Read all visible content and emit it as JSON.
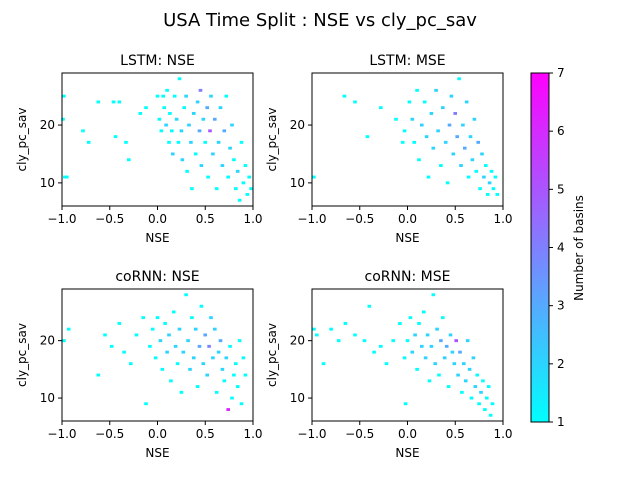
{
  "figure": {
    "suptitle": "USA Time Split : NSE vs cly_pc_sav",
    "cmap": [
      "#00ffff",
      "#ff00ff"
    ]
  },
  "chart_data": [
    {
      "type": "heatmap",
      "title": "LSTM: NSE",
      "xlabel": "NSE",
      "ylabel": "cly_pc_sav",
      "xlim": [
        -1.0,
        1.0
      ],
      "ylim": [
        6,
        29
      ],
      "xticks": [
        "−1.0",
        "−0.5",
        "0.0",
        "0.5",
        "1.0"
      ],
      "yticks": [
        "10",
        "20"
      ],
      "cells": [
        [
          -0.98,
          25,
          1
        ],
        [
          -0.99,
          21,
          1
        ],
        [
          -0.97,
          11,
          1
        ],
        [
          -0.95,
          11,
          1
        ],
        [
          -0.78,
          19,
          1
        ],
        [
          -0.72,
          17,
          1
        ],
        [
          -0.62,
          24,
          1
        ],
        [
          -0.46,
          24,
          1
        ],
        [
          -0.44,
          18,
          1
        ],
        [
          -0.4,
          24,
          1
        ],
        [
          -0.33,
          17,
          1
        ],
        [
          -0.3,
          14,
          1
        ],
        [
          -0.18,
          22,
          1
        ],
        [
          -0.12,
          23,
          1
        ],
        [
          0.0,
          25,
          1
        ],
        [
          0.02,
          21,
          1
        ],
        [
          0.04,
          19,
          1
        ],
        [
          0.06,
          25,
          1
        ],
        [
          0.07,
          23,
          1
        ],
        [
          0.09,
          20,
          2
        ],
        [
          0.1,
          26,
          1
        ],
        [
          0.12,
          17,
          1
        ],
        [
          0.13,
          22,
          1
        ],
        [
          0.15,
          19,
          1
        ],
        [
          0.16,
          15,
          2
        ],
        [
          0.18,
          25,
          1
        ],
        [
          0.2,
          21,
          2
        ],
        [
          0.22,
          17,
          1
        ],
        [
          0.23,
          28,
          1
        ],
        [
          0.25,
          19,
          2
        ],
        [
          0.26,
          14,
          2
        ],
        [
          0.28,
          23,
          1
        ],
        [
          0.3,
          25,
          2
        ],
        [
          0.31,
          12,
          1
        ],
        [
          0.33,
          20,
          2
        ],
        [
          0.35,
          17,
          2
        ],
        [
          0.36,
          9,
          1
        ],
        [
          0.38,
          22,
          2
        ],
        [
          0.4,
          15,
          1
        ],
        [
          0.42,
          24,
          2
        ],
        [
          0.44,
          19,
          3
        ],
        [
          0.45,
          26,
          4
        ],
        [
          0.46,
          13,
          2
        ],
        [
          0.48,
          21,
          2
        ],
        [
          0.5,
          17,
          1
        ],
        [
          0.52,
          23,
          3
        ],
        [
          0.53,
          11,
          1
        ],
        [
          0.55,
          19,
          5
        ],
        [
          0.56,
          25,
          2
        ],
        [
          0.58,
          15,
          2
        ],
        [
          0.6,
          21,
          3
        ],
        [
          0.62,
          9,
          1
        ],
        [
          0.64,
          17,
          2
        ],
        [
          0.66,
          23,
          2
        ],
        [
          0.68,
          13,
          2
        ],
        [
          0.7,
          19,
          3
        ],
        [
          0.72,
          25,
          1
        ],
        [
          0.74,
          11,
          1
        ],
        [
          0.76,
          16,
          2
        ],
        [
          0.78,
          20,
          2
        ],
        [
          0.8,
          14,
          1
        ],
        [
          0.82,
          9,
          1
        ],
        [
          0.84,
          12,
          2
        ],
        [
          0.86,
          7,
          1
        ],
        [
          0.88,
          17,
          1
        ],
        [
          0.9,
          10,
          1
        ],
        [
          0.92,
          13,
          1
        ],
        [
          0.94,
          8,
          1
        ],
        [
          0.96,
          11,
          1
        ],
        [
          0.98,
          9,
          1
        ]
      ]
    },
    {
      "type": "heatmap",
      "title": "LSTM: MSE",
      "xlabel": "NSE",
      "ylabel": "cly_pc_sav",
      "xlim": [
        -1.0,
        1.0
      ],
      "ylim": [
        6,
        29
      ],
      "xticks": [
        "−1.0",
        "−0.5",
        "0.0",
        "0.5",
        "1.0"
      ],
      "yticks": [
        "10",
        "20"
      ],
      "cells": [
        [
          -0.98,
          11,
          1
        ],
        [
          -0.66,
          25,
          1
        ],
        [
          -0.55,
          24,
          1
        ],
        [
          -0.42,
          18,
          1
        ],
        [
          -0.28,
          23,
          1
        ],
        [
          -0.12,
          21,
          1
        ],
        [
          -0.05,
          17,
          1
        ],
        [
          -0.03,
          19,
          1
        ],
        [
          0.02,
          24,
          1
        ],
        [
          0.05,
          21,
          2
        ],
        [
          0.07,
          17,
          1
        ],
        [
          0.1,
          26,
          1
        ],
        [
          0.12,
          14,
          1
        ],
        [
          0.15,
          20,
          2
        ],
        [
          0.18,
          24,
          1
        ],
        [
          0.2,
          18,
          2
        ],
        [
          0.22,
          11,
          1
        ],
        [
          0.25,
          22,
          2
        ],
        [
          0.27,
          16,
          2
        ],
        [
          0.3,
          26,
          2
        ],
        [
          0.32,
          19,
          2
        ],
        [
          0.35,
          13,
          1
        ],
        [
          0.37,
          23,
          2
        ],
        [
          0.4,
          17,
          2
        ],
        [
          0.42,
          10,
          1
        ],
        [
          0.44,
          20,
          3
        ],
        [
          0.46,
          25,
          2
        ],
        [
          0.48,
          15,
          2
        ],
        [
          0.5,
          22,
          4
        ],
        [
          0.52,
          18,
          3
        ],
        [
          0.54,
          28,
          1
        ],
        [
          0.56,
          13,
          2
        ],
        [
          0.58,
          20,
          2
        ],
        [
          0.6,
          16,
          3
        ],
        [
          0.62,
          24,
          2
        ],
        [
          0.64,
          11,
          1
        ],
        [
          0.66,
          18,
          2
        ],
        [
          0.68,
          14,
          2
        ],
        [
          0.7,
          21,
          2
        ],
        [
          0.72,
          12,
          1
        ],
        [
          0.74,
          17,
          3
        ],
        [
          0.76,
          9,
          1
        ],
        [
          0.78,
          15,
          2
        ],
        [
          0.8,
          11,
          2
        ],
        [
          0.82,
          13,
          1
        ],
        [
          0.84,
          8,
          1
        ],
        [
          0.86,
          10,
          2
        ],
        [
          0.88,
          12,
          1
        ],
        [
          0.9,
          9,
          1
        ],
        [
          0.92,
          11,
          1
        ],
        [
          0.94,
          8,
          1
        ]
      ]
    },
    {
      "type": "heatmap",
      "title": "coRNN: NSE",
      "xlabel": "NSE",
      "ylabel": "cly_pc_sav",
      "xlim": [
        -1.0,
        1.0
      ],
      "ylim": [
        6,
        29
      ],
      "xticks": [
        "−1.0",
        "−0.5",
        "0.0",
        "0.5",
        "1.0"
      ],
      "yticks": [
        "10",
        "20"
      ],
      "cells": [
        [
          -0.98,
          20,
          1
        ],
        [
          -0.93,
          22,
          1
        ],
        [
          -0.62,
          14,
          1
        ],
        [
          -0.55,
          21,
          1
        ],
        [
          -0.48,
          19,
          1
        ],
        [
          -0.4,
          23,
          1
        ],
        [
          -0.35,
          18,
          1
        ],
        [
          -0.28,
          16,
          1
        ],
        [
          -0.22,
          21,
          1
        ],
        [
          -0.15,
          24,
          1
        ],
        [
          -0.12,
          9,
          1
        ],
        [
          -0.08,
          19,
          1
        ],
        [
          -0.05,
          22,
          1
        ],
        [
          -0.02,
          17,
          1
        ],
        [
          0.0,
          24,
          1
        ],
        [
          0.03,
          20,
          2
        ],
        [
          0.05,
          15,
          1
        ],
        [
          0.08,
          23,
          1
        ],
        [
          0.1,
          18,
          2
        ],
        [
          0.12,
          21,
          2
        ],
        [
          0.14,
          13,
          1
        ],
        [
          0.17,
          25,
          1
        ],
        [
          0.19,
          19,
          2
        ],
        [
          0.21,
          16,
          1
        ],
        [
          0.23,
          22,
          2
        ],
        [
          0.25,
          11,
          1
        ],
        [
          0.27,
          18,
          2
        ],
        [
          0.3,
          28,
          1
        ],
        [
          0.32,
          20,
          2
        ],
        [
          0.34,
          15,
          2
        ],
        [
          0.36,
          24,
          1
        ],
        [
          0.38,
          17,
          2
        ],
        [
          0.4,
          22,
          2
        ],
        [
          0.42,
          12,
          1
        ],
        [
          0.44,
          19,
          3
        ],
        [
          0.46,
          26,
          1
        ],
        [
          0.48,
          16,
          2
        ],
        [
          0.5,
          21,
          3
        ],
        [
          0.52,
          14,
          2
        ],
        [
          0.54,
          19,
          4
        ],
        [
          0.56,
          24,
          2
        ],
        [
          0.58,
          17,
          2
        ],
        [
          0.6,
          22,
          2
        ],
        [
          0.62,
          11,
          1
        ],
        [
          0.64,
          18,
          2
        ],
        [
          0.66,
          20,
          3
        ],
        [
          0.68,
          15,
          2
        ],
        [
          0.7,
          13,
          1
        ],
        [
          0.72,
          17,
          2
        ],
        [
          0.74,
          8,
          6
        ],
        [
          0.76,
          19,
          1
        ],
        [
          0.78,
          10,
          1
        ],
        [
          0.8,
          14,
          1
        ],
        [
          0.82,
          16,
          1
        ],
        [
          0.84,
          12,
          1
        ],
        [
          0.86,
          20,
          1
        ],
        [
          0.88,
          9,
          1
        ],
        [
          0.9,
          17,
          1
        ],
        [
          0.92,
          14,
          1
        ]
      ]
    },
    {
      "type": "heatmap",
      "title": "coRNN: MSE",
      "xlabel": "NSE",
      "ylabel": "cly_pc_sav",
      "xlim": [
        -1.0,
        1.0
      ],
      "ylim": [
        6,
        29
      ],
      "xticks": [
        "−1.0",
        "−0.5",
        "0.0",
        "0.5",
        "1.0"
      ],
      "yticks": [
        "10",
        "20"
      ],
      "cells": [
        [
          -0.98,
          22,
          1
        ],
        [
          -0.95,
          21,
          1
        ],
        [
          -0.88,
          16,
          1
        ],
        [
          -0.8,
          22,
          1
        ],
        [
          -0.72,
          20,
          1
        ],
        [
          -0.65,
          23,
          1
        ],
        [
          -0.55,
          21,
          1
        ],
        [
          -0.45,
          20,
          1
        ],
        [
          -0.4,
          26,
          1
        ],
        [
          -0.35,
          18,
          1
        ],
        [
          -0.28,
          19,
          1
        ],
        [
          -0.22,
          16,
          1
        ],
        [
          -0.15,
          20,
          1
        ],
        [
          -0.08,
          23,
          1
        ],
        [
          -0.03,
          17,
          1
        ],
        [
          -0.02,
          9,
          1
        ],
        [
          0.0,
          20,
          1
        ],
        [
          0.03,
          24,
          1
        ],
        [
          0.05,
          18,
          2
        ],
        [
          0.08,
          21,
          2
        ],
        [
          0.1,
          15,
          1
        ],
        [
          0.12,
          23,
          1
        ],
        [
          0.15,
          19,
          2
        ],
        [
          0.17,
          25,
          1
        ],
        [
          0.19,
          17,
          2
        ],
        [
          0.21,
          21,
          2
        ],
        [
          0.23,
          13,
          1
        ],
        [
          0.25,
          19,
          2
        ],
        [
          0.27,
          28,
          1
        ],
        [
          0.29,
          16,
          2
        ],
        [
          0.31,
          22,
          2
        ],
        [
          0.33,
          14,
          1
        ],
        [
          0.35,
          20,
          3
        ],
        [
          0.37,
          24,
          1
        ],
        [
          0.39,
          17,
          2
        ],
        [
          0.41,
          19,
          3
        ],
        [
          0.43,
          12,
          1
        ],
        [
          0.45,
          21,
          2
        ],
        [
          0.47,
          18,
          2
        ],
        [
          0.49,
          16,
          2
        ],
        [
          0.51,
          20,
          5
        ],
        [
          0.53,
          14,
          2
        ],
        [
          0.55,
          18,
          3
        ],
        [
          0.57,
          11,
          1
        ],
        [
          0.59,
          16,
          2
        ],
        [
          0.61,
          13,
          2
        ],
        [
          0.63,
          20,
          2
        ],
        [
          0.65,
          15,
          2
        ],
        [
          0.67,
          10,
          1
        ],
        [
          0.69,
          17,
          2
        ],
        [
          0.71,
          12,
          2
        ],
        [
          0.73,
          14,
          1
        ],
        [
          0.75,
          9,
          1
        ],
        [
          0.77,
          11,
          2
        ],
        [
          0.79,
          13,
          1
        ],
        [
          0.81,
          8,
          1
        ],
        [
          0.83,
          10,
          1
        ],
        [
          0.85,
          12,
          1
        ],
        [
          0.87,
          7,
          1
        ],
        [
          0.89,
          9,
          1
        ]
      ]
    }
  ],
  "colorbar": {
    "label": "Number of basins",
    "min": 1,
    "max": 7,
    "ticks": [
      "1",
      "2",
      "3",
      "4",
      "5",
      "6",
      "7"
    ]
  }
}
